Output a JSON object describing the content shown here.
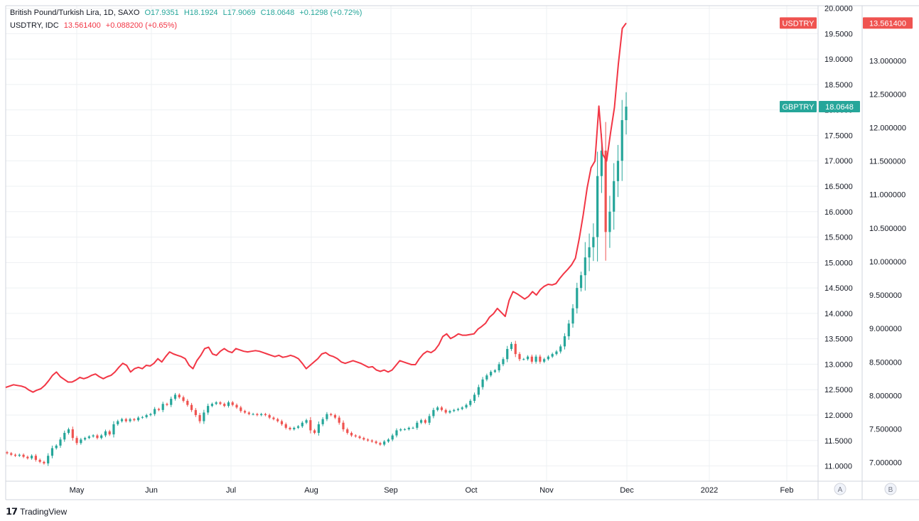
{
  "legend": {
    "gbp": {
      "name": "British Pound/Turkish Lira, 1D, SAXO",
      "o": "O17.9351",
      "h": "H18.1924",
      "l": "L17.9069",
      "c": "C18.0648",
      "chg": "+0.1298 (+0.72%)"
    },
    "usd": {
      "name": "USDTRY, IDC",
      "last": "13.561400",
      "chg": "+0.088200 (+0.65%)"
    }
  },
  "branding": {
    "label": "TradingView"
  },
  "colors": {
    "up": "#26a69a",
    "down": "#ef5350",
    "line": "#f23645",
    "text": "#131722",
    "grid": "#eef0f3"
  },
  "chart_data": {
    "type": "candlestick+line",
    "x_ticks": [
      "May",
      "Jun",
      "Jul",
      "Aug",
      "Sep",
      "Oct",
      "Nov",
      "Dec",
      "2022",
      "Feb"
    ],
    "axis_a": {
      "label": "A",
      "ticks": [
        "20.0000",
        "19.5000",
        "19.0000",
        "18.5000",
        "18.0000",
        "17.5000",
        "17.0000",
        "16.5000",
        "16.0000",
        "15.5000",
        "15.0000",
        "14.5000",
        "14.0000",
        "13.5000",
        "13.0000",
        "12.5000",
        "12.0000",
        "11.5000",
        "11.0000"
      ],
      "ylim": [
        10.7,
        20.05
      ]
    },
    "axis_b": {
      "label": "B",
      "ticks": [
        "13.561400",
        "13.000000",
        "12.500000",
        "12.000000",
        "11.500000",
        "11.000000",
        "10.500000",
        "10.000000",
        "9.500000",
        "9.000000",
        "8.500000",
        "8.000000",
        "7.500000",
        "7.000000"
      ],
      "ylim": [
        6.72,
        13.82
      ]
    },
    "series": [
      {
        "name": "GBPTRY",
        "axis": "A",
        "last_label": "18.0648",
        "ohlc_close": [
          11.25,
          11.22,
          11.2,
          11.22,
          11.18,
          11.15,
          11.2,
          11.12,
          11.08,
          11.05,
          11.2,
          11.35,
          11.4,
          11.52,
          11.65,
          11.72,
          11.55,
          11.45,
          11.52,
          11.55,
          11.58,
          11.6,
          11.55,
          11.6,
          11.68,
          11.62,
          11.82,
          11.88,
          11.92,
          11.88,
          11.92,
          11.9,
          11.95,
          11.96,
          12.0,
          12.02,
          12.12,
          12.1,
          12.22,
          12.2,
          12.32,
          12.4,
          12.35,
          12.28,
          12.2,
          12.1,
          12.0,
          11.88,
          12.05,
          12.18,
          12.22,
          12.25,
          12.22,
          12.18,
          12.25,
          12.2,
          12.15,
          12.08,
          12.05,
          12.02,
          12.02,
          12.0,
          12.02,
          12.0,
          11.95,
          11.92,
          11.88,
          11.82,
          11.75,
          11.72,
          11.75,
          11.78,
          11.85,
          11.9,
          11.7,
          11.65,
          11.82,
          11.92,
          12.02,
          12.0,
          11.95,
          11.85,
          11.72,
          11.65,
          11.6,
          11.58,
          11.55,
          11.52,
          11.5,
          11.48,
          11.45,
          11.42,
          11.48,
          11.52,
          11.6,
          11.7,
          11.72,
          11.72,
          11.75,
          11.75,
          11.85,
          11.9,
          11.85,
          11.98,
          12.1,
          12.15,
          12.1,
          12.05,
          12.08,
          12.1,
          12.12,
          12.15,
          12.2,
          12.28,
          12.4,
          12.55,
          12.7,
          12.78,
          12.85,
          12.88,
          13.0,
          13.1,
          13.3,
          13.4,
          13.2,
          13.1,
          13.1,
          13.15,
          13.05,
          13.15,
          13.05,
          13.1,
          13.15,
          13.2,
          13.25,
          13.35,
          13.55,
          13.8,
          14.1,
          14.5,
          14.75,
          15.1,
          15.3,
          15.5,
          16.7,
          17.2,
          15.6,
          16.0,
          16.6,
          17.0,
          17.8,
          18.0648
        ],
        "open_first": 11.27
      },
      {
        "name": "USDTRY",
        "axis": "B",
        "last_label": "13.561400",
        "values": [
          8.12,
          8.14,
          8.16,
          8.15,
          8.14,
          8.12,
          8.08,
          8.05,
          8.08,
          8.1,
          8.15,
          8.22,
          8.3,
          8.35,
          8.28,
          8.24,
          8.2,
          8.2,
          8.23,
          8.27,
          8.25,
          8.27,
          8.3,
          8.32,
          8.28,
          8.25,
          8.28,
          8.3,
          8.35,
          8.42,
          8.48,
          8.45,
          8.35,
          8.4,
          8.42,
          8.4,
          8.45,
          8.44,
          8.48,
          8.55,
          8.5,
          8.58,
          8.65,
          8.62,
          8.6,
          8.58,
          8.55,
          8.45,
          8.4,
          8.52,
          8.6,
          8.7,
          8.72,
          8.62,
          8.6,
          8.66,
          8.7,
          8.66,
          8.64,
          8.7,
          8.68,
          8.66,
          8.65,
          8.66,
          8.67,
          8.66,
          8.64,
          8.62,
          8.6,
          8.58,
          8.6,
          8.57,
          8.58,
          8.6,
          8.58,
          8.55,
          8.48,
          8.4,
          8.45,
          8.5,
          8.55,
          8.62,
          8.64,
          8.6,
          8.58,
          8.55,
          8.5,
          8.48,
          8.5,
          8.52,
          8.5,
          8.48,
          8.45,
          8.42,
          8.43,
          8.38,
          8.36,
          8.38,
          8.35,
          8.38,
          8.45,
          8.52,
          8.5,
          8.48,
          8.46,
          8.46,
          8.55,
          8.62,
          8.66,
          8.64,
          8.68,
          8.76,
          8.88,
          8.92,
          8.85,
          8.88,
          8.92,
          8.9,
          8.9,
          8.91,
          8.92,
          8.99,
          9.03,
          9.08,
          9.17,
          9.22,
          9.3,
          9.24,
          9.18,
          9.42,
          9.55,
          9.52,
          9.48,
          9.44,
          9.48,
          9.55,
          9.5,
          9.58,
          9.63,
          9.66,
          9.65,
          9.67,
          9.75,
          9.82,
          9.88,
          9.95,
          10.05,
          10.35,
          10.7,
          11.1,
          11.4,
          11.5,
          12.32,
          11.6,
          11.5,
          11.92,
          12.3,
          12.95,
          13.48,
          13.5614
        ]
      }
    ]
  }
}
